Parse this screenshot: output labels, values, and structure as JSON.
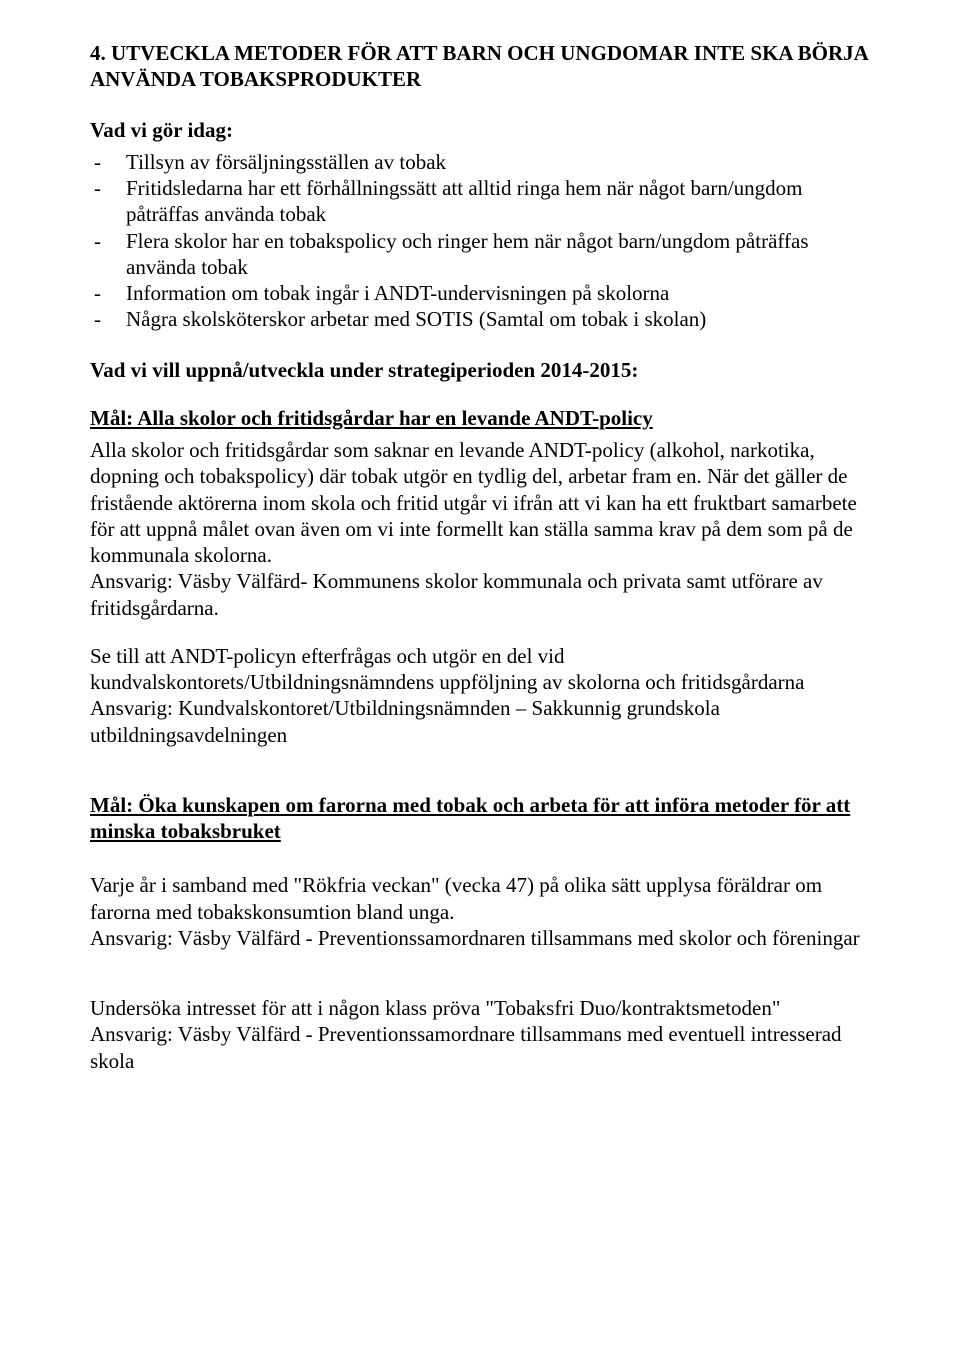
{
  "heading": "4. UTVECKLA METODER FÖR ATT BARN OCH UNGDOMAR INTE SKA BÖRJA ANVÄNDA TOBAKSPRODUKTER",
  "today_label": "Vad vi gör idag:",
  "bullets": [
    "Tillsyn av försäljningsställen av tobak",
    "Fritidsledarna har ett förhållningssätt att alltid ringa hem när något barn/ungdom påträffas använda tobak",
    "Flera skolor har en tobakspolicy och ringer hem när något barn/ungdom påträffas använda tobak",
    "Information om tobak ingår i ANDT-undervisningen på skolorna",
    "Några skolsköterskor arbetar med SOTIS (Samtal om tobak i skolan)"
  ],
  "strategy_label": "Vad vi vill uppnå/utveckla under strategiperioden 2014-2015:",
  "goal1_title": "Mål: Alla skolor och fritidsgårdar har en levande ANDT-policy",
  "goal1_p1": "Alla skolor och fritidsgårdar som saknar en levande ANDT-policy (alkohol, narkotika, dopning och tobakspolicy) där tobak utgör en tydlig del, arbetar fram en. När det gäller de fristående aktörerna inom skola och fritid utgår vi ifrån att vi kan ha ett fruktbart samarbete för att uppnå målet ovan även om vi inte formellt kan ställa samma krav på dem som på de kommunala skolorna.",
  "goal1_resp1": "Ansvarig: Väsby Välfärd- Kommunens skolor kommunala och privata samt utförare av fritidsgårdarna.",
  "goal1_p2": "Se till att ANDT-policyn efterfrågas och utgör en del vid kundvalskontorets/Utbildningsnämndens uppföljning av skolorna och fritidsgårdarna",
  "goal1_resp2": "Ansvarig: Kundvalskontoret/Utbildningsnämnden – Sakkunnig grundskola utbildningsavdelningen",
  "goal2_title": "Mål: Öka kunskapen om farorna med tobak och arbeta för att införa metoder för att minska tobaksbruket",
  "goal2_p1": "Varje år i samband med \"Rökfria veckan\" (vecka 47) på olika sätt upplysa föräldrar om farorna med tobakskonsumtion bland unga.",
  "goal2_resp1": "Ansvarig: Väsby Välfärd - Preventionssamordnaren tillsammans med skolor och föreningar",
  "goal2_p2": "Undersöka intresset för att i någon klass pröva \"Tobaksfri Duo/kontraktsmetoden\"",
  "goal2_resp2": "Ansvarig: Väsby Välfärd - Preventionssamordnare tillsammans med eventuell intresserad skola"
}
